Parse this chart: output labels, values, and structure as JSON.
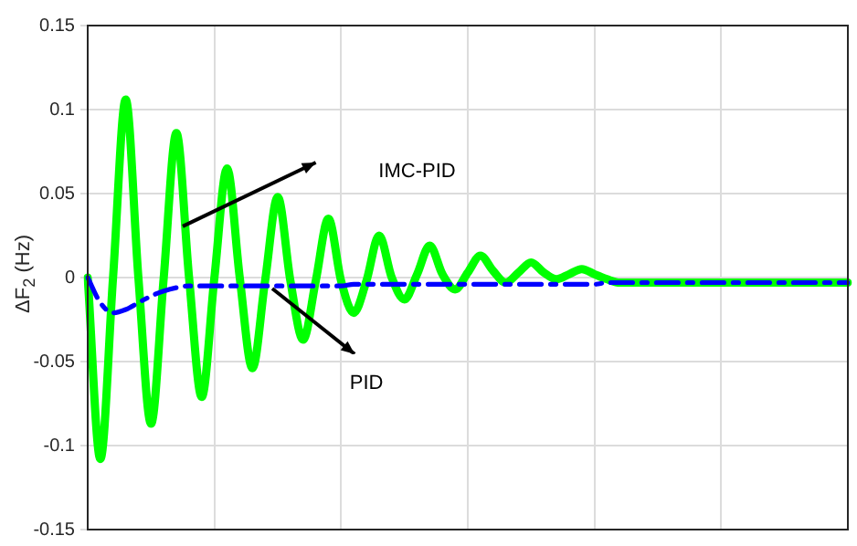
{
  "chart_data": {
    "type": "line",
    "ylabel": "ΔF$_{2}$ (Hz)",
    "categories": [
      null,
      null,
      null,
      null,
      null,
      null,
      null,
      null,
      null,
      null,
      null,
      null,
      null,
      null,
      null,
      null,
      null,
      null,
      null,
      null,
      null,
      null,
      null,
      null,
      null,
      null,
      null,
      null,
      null,
      null,
      null,
      null,
      null,
      null,
      null,
      null,
      null,
      null,
      null,
      null,
      null,
      null,
      null,
      null,
      null,
      null,
      null,
      null,
      null,
      null,
      null,
      null,
      null,
      null,
      null,
      null,
      null,
      null,
      null,
      null,
      null
    ],
    "series": [
      {
        "name": "IMC-PID",
        "color": "#00ff00",
        "line_style": "solid",
        "values": [
          0,
          -0.108,
          0,
          0.106,
          0,
          -0.087,
          0,
          0.086,
          0,
          -0.071,
          0,
          0.065,
          0,
          -0.054,
          -0.002,
          0.048,
          -0.002,
          -0.037,
          -0.002,
          0.035,
          -0.002,
          -0.021,
          -0.002,
          0.025,
          0,
          -0.013,
          0.002,
          0.019,
          0.002,
          -0.007,
          0.003,
          0.013,
          0.004,
          -0.003,
          0.003,
          0.009,
          0.003,
          -0.001,
          0.002,
          0.005,
          0.002,
          -0.001,
          -0.003,
          -0.003,
          -0.003,
          -0.003,
          -0.003,
          -0.003,
          -0.003,
          -0.003,
          -0.003,
          -0.003,
          -0.003,
          -0.003,
          -0.003,
          -0.003,
          -0.003,
          -0.003,
          -0.003,
          -0.003,
          -0.003
        ]
      },
      {
        "name": "PID",
        "color": "#0000ff",
        "line_style": "dashed",
        "values": [
          0,
          -0.015,
          -0.021,
          -0.019,
          -0.015,
          -0.011,
          -0.008,
          -0.006,
          -0.005,
          -0.005,
          -0.005,
          -0.005,
          -0.005,
          -0.005,
          -0.005,
          -0.005,
          -0.005,
          -0.005,
          -0.005,
          -0.005,
          -0.005,
          -0.004,
          -0.004,
          -0.004,
          -0.004,
          -0.004,
          -0.004,
          -0.004,
          -0.004,
          -0.004,
          -0.004,
          -0.004,
          -0.004,
          -0.004,
          -0.004,
          -0.004,
          -0.004,
          -0.004,
          -0.004,
          -0.004,
          -0.004,
          -0.003,
          -0.003,
          -0.003,
          -0.003,
          -0.003,
          -0.003,
          -0.003,
          -0.003,
          -0.003,
          -0.003,
          -0.003,
          -0.003,
          -0.003,
          -0.003,
          -0.003,
          -0.003,
          -0.003,
          -0.003,
          -0.003,
          -0.003
        ]
      }
    ],
    "ylim": [
      -0.15,
      0.15
    ],
    "yticks": [
      -0.15,
      -0.1,
      -0.05,
      0,
      0.05,
      0.1,
      0.15
    ],
    "grid": true,
    "legend": false,
    "tick_labels": "y",
    "marker": "none"
  }
}
